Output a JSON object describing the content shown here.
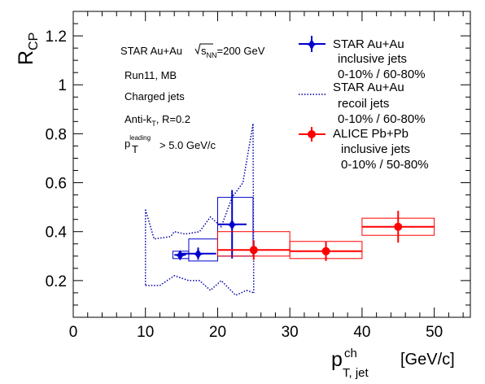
{
  "chart_data": {
    "type": "scatter",
    "xlabel_main": "p",
    "xlabel_sup": "ch",
    "xlabel_sub": "T, jet",
    "xlabel_unit": "[GeV/c]",
    "ylabel_main": "R",
    "ylabel_sub": "CP",
    "xlim": [
      0,
      55
    ],
    "ylim": [
      0.05,
      1.3
    ],
    "x_ticks": [
      0,
      10,
      20,
      30,
      40,
      50
    ],
    "x_tick_labels": [
      "0",
      "10",
      "20",
      "30",
      "40",
      "50"
    ],
    "y_ticks": [
      0.2,
      0.4,
      0.6,
      0.8,
      1.0,
      1.2
    ],
    "y_tick_labels": [
      "0.2",
      "0.4",
      "0.6",
      "0.8",
      "1",
      "1.2"
    ],
    "grid": false,
    "legend_position": "top-right",
    "info_lines": {
      "line1_pre": "STAR Au+Au ",
      "line1_sqrt": "s",
      "line1_sqrt_sub": "NN",
      "line1_post": "=200 GeV",
      "line2": "Run11, MB",
      "line3": "Charged jets",
      "line4_pre": "Anti-k",
      "line4_sub": "T",
      "line4_post": ", R=0.2",
      "line5_pre": "p",
      "line5_sup": "leading",
      "line5_sub": "T",
      "line5_post": " > 5.0 GeV/c"
    },
    "series": [
      {
        "name_lines": [
          "STAR Au+Au",
          "inclusive jets",
          "0-10% / 60-80%"
        ],
        "color": "#0000cc",
        "marker": "star",
        "points": [
          {
            "x": 14.8,
            "y": 0.305,
            "xerr": 0.8,
            "yerr": 0.015,
            "sys_x": [
              13.8,
              16.0
            ],
            "sys_y": [
              0.29,
              0.32
            ]
          },
          {
            "x": 17.3,
            "y": 0.31,
            "xerr": 2.5,
            "yerr": 0.025,
            "sys_x": [
              16.0,
              20.0
            ],
            "sys_y": [
              0.28,
              0.37
            ]
          },
          {
            "x": 22.0,
            "y": 0.43,
            "xerr": 2.0,
            "yerr": 0.14,
            "sys_x": [
              20.0,
              24.9
            ],
            "sys_y": [
              0.3,
              0.54
            ]
          }
        ]
      },
      {
        "name_lines": [
          "STAR Au+Au",
          "recoil jets",
          "0-10% / 60-80%"
        ],
        "color": "#0000aa",
        "style": "dotted-band",
        "upper": [
          [
            10,
            0.49
          ],
          [
            11.2,
            0.37
          ],
          [
            13.5,
            0.38
          ],
          [
            14,
            0.4
          ],
          [
            15.5,
            0.39
          ],
          [
            17.5,
            0.4
          ],
          [
            19,
            0.46
          ],
          [
            20.5,
            0.42
          ],
          [
            22,
            0.54
          ],
          [
            23.5,
            0.6
          ],
          [
            24.9,
            0.84
          ]
        ],
        "lower": [
          [
            10,
            0.18
          ],
          [
            12,
            0.18
          ],
          [
            14,
            0.22
          ],
          [
            16,
            0.2
          ],
          [
            17.5,
            0.2
          ],
          [
            19,
            0.16
          ],
          [
            20.5,
            0.2
          ],
          [
            22.5,
            0.14
          ],
          [
            24,
            0.16
          ],
          [
            25,
            0.15
          ]
        ]
      },
      {
        "name_lines": [
          "ALICE Pb+Pb",
          "inclusive jets",
          "0-10% / 50-80%"
        ],
        "color": "#ff0000",
        "marker": "circle",
        "points": [
          {
            "x": 25,
            "y": 0.325,
            "xerr": 5,
            "yerr": 0.04,
            "sys_x": [
              20,
              30
            ],
            "sys_y": [
              0.3,
              0.4
            ]
          },
          {
            "x": 35,
            "y": 0.32,
            "xerr": 5,
            "yerr": 0.04,
            "sys_x": [
              30,
              40
            ],
            "sys_y": [
              0.29,
              0.36
            ]
          },
          {
            "x": 45,
            "y": 0.42,
            "xerr": 5,
            "yerr": 0.065,
            "sys_x": [
              40,
              50
            ],
            "sys_y": [
              0.385,
              0.455
            ]
          }
        ]
      }
    ]
  }
}
